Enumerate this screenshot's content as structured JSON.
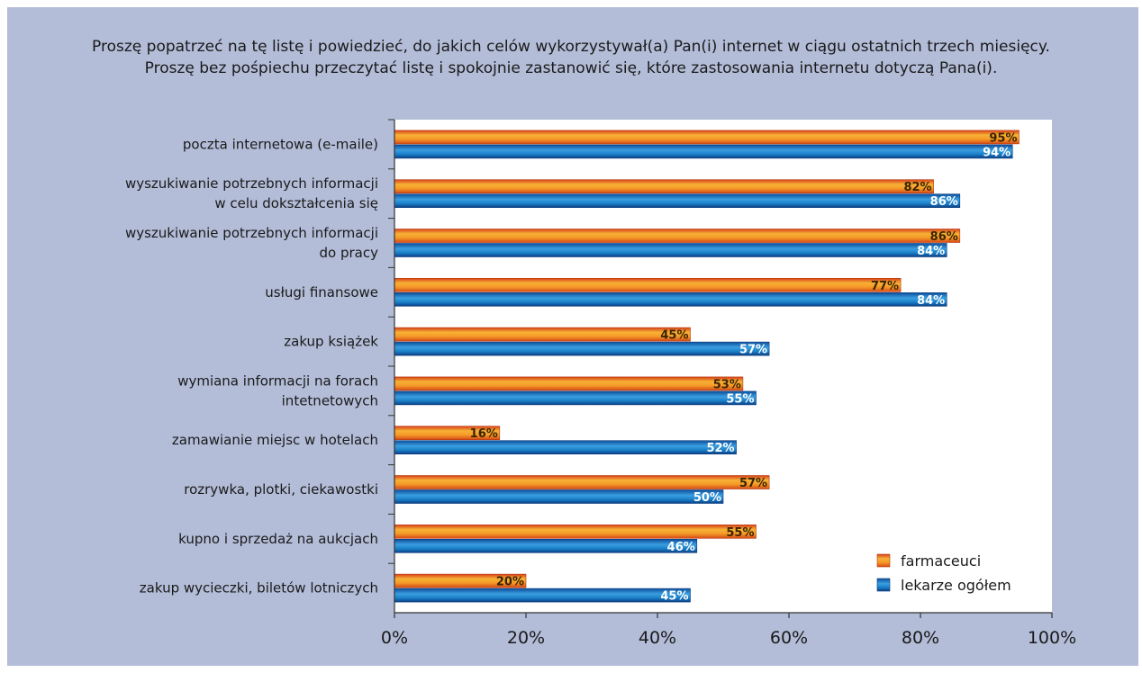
{
  "title_lines": [
    "Proszę popatrzeć na tę listę i powiedzieć, do jakich celów wykorzystywał(a) Pan(i) internet w ciągu ostatnich trzech miesięcy.",
    "Proszę bez pośpiechu przeczytać listę i spokojnie zastanowić się, które zastosowania internetu dotyczą Pana(i)."
  ],
  "colors": {
    "background": "#b3bdd8",
    "plot_area": "#ffffff",
    "farmaceuci_bar": "#f0851c",
    "lekarze_bar": "#1878c4"
  },
  "chart_data": {
    "type": "bar",
    "orientation": "horizontal",
    "categories": [
      [
        "poczta internetowa (e-maile)"
      ],
      [
        "wyszukiwanie potrzebnych informacji",
        "w celu dokształcenia się"
      ],
      [
        "wyszukiwanie potrzebnych informacji",
        "do pracy"
      ],
      [
        "usługi finansowe"
      ],
      [
        "zakup książek"
      ],
      [
        "wymiana informacji na forach",
        "intetnetowych"
      ],
      [
        "zamawianie miejsc w hotelach"
      ],
      [
        "rozrywka, plotki, ciekawostki"
      ],
      [
        "kupno i sprzedaż na aukcjach"
      ],
      [
        "zakup wycieczki, biletów lotniczych"
      ]
    ],
    "series": [
      {
        "name": "farmaceuci",
        "values": [
          95,
          82,
          86,
          77,
          45,
          53,
          16,
          57,
          55,
          20
        ]
      },
      {
        "name": "lekarze ogółem",
        "values": [
          94,
          86,
          84,
          84,
          57,
          55,
          52,
          50,
          46,
          45
        ]
      }
    ],
    "value_suffix": "%",
    "xlim": [
      0,
      100
    ],
    "xticks": [
      "0%",
      "20%",
      "40%",
      "60%",
      "80%",
      "100%"
    ],
    "legend_position": "bottom-right",
    "grid": false
  }
}
